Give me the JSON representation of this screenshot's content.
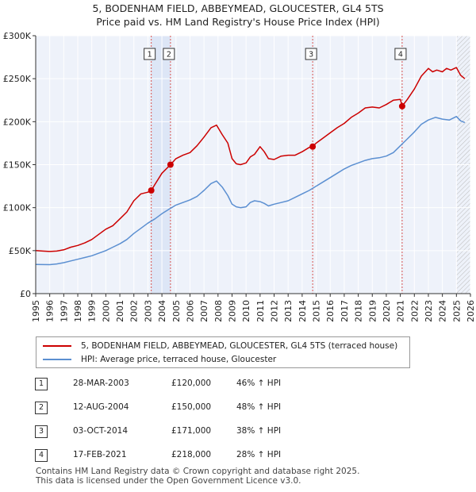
{
  "chart_data": {
    "type": "line",
    "title": "5, BODENHAM FIELD, ABBEYMEAD, GLOUCESTER, GL4 5TS",
    "subtitle": "Price paid vs. HM Land Registry's House Price Index (HPI)",
    "xlim": [
      1995,
      2026
    ],
    "ylim": [
      0,
      300000
    ],
    "x_ticks": [
      "1995",
      "1996",
      "1997",
      "1998",
      "1999",
      "2000",
      "2001",
      "2002",
      "2003",
      "2004",
      "2005",
      "2006",
      "2007",
      "2008",
      "2009",
      "2010",
      "2011",
      "2012",
      "2013",
      "2014",
      "2015",
      "2016",
      "2017",
      "2018",
      "2019",
      "2020",
      "2021",
      "2022",
      "2023",
      "2024",
      "2025",
      "2026"
    ],
    "y_ticks": [
      {
        "value": 0,
        "label": "£0"
      },
      {
        "value": 50000,
        "label": "£50K"
      },
      {
        "value": 100000,
        "label": "£100K"
      },
      {
        "value": 150000,
        "label": "£150K"
      },
      {
        "value": 200000,
        "label": "£200K"
      },
      {
        "value": 250000,
        "label": "£250K"
      },
      {
        "value": 300000,
        "label": "£300K"
      }
    ],
    "series": [
      {
        "name": "5, BODENHAM FIELD, ABBEYMEAD, GLOUCESTER, GL4 5TS (terraced house)",
        "color": "#cc0000",
        "x": [
          1995,
          1995.5,
          1996,
          1996.5,
          1997,
          1997.5,
          1998,
          1998.5,
          1999,
          1999.5,
          2000,
          2000.5,
          2001,
          2001.5,
          2002,
          2002.5,
          2003,
          2003.24,
          2003.5,
          2004,
          2004.61,
          2005,
          2005.5,
          2006,
          2006.5,
          2007,
          2007.5,
          2007.9,
          2008.3,
          2008.7,
          2009,
          2009.3,
          2009.6,
          2010,
          2010.3,
          2010.6,
          2011,
          2011.3,
          2011.6,
          2012,
          2012.5,
          2013,
          2013.5,
          2014,
          2014.5,
          2014.75,
          2015,
          2015.5,
          2016,
          2016.5,
          2017,
          2017.5,
          2018,
          2018.5,
          2019,
          2019.5,
          2020,
          2020.5,
          2021,
          2021.13,
          2021.5,
          2022,
          2022.5,
          2023,
          2023.3,
          2023.6,
          2024,
          2024.3,
          2024.6,
          2025,
          2025.3,
          2025.6
        ],
        "y": [
          50000,
          49500,
          49000,
          49500,
          51000,
          54000,
          56000,
          59000,
          63000,
          69000,
          75000,
          79000,
          87000,
          95000,
          108000,
          116000,
          118000,
          120000,
          127000,
          140000,
          150000,
          157000,
          161000,
          164000,
          172000,
          182000,
          193000,
          196000,
          185000,
          175000,
          157000,
          151000,
          150000,
          152000,
          159000,
          162000,
          171000,
          165000,
          157000,
          156000,
          160000,
          161000,
          161000,
          165000,
          170000,
          171000,
          175000,
          181000,
          187000,
          193000,
          198000,
          205000,
          210000,
          216000,
          217000,
          216000,
          220000,
          225000,
          226000,
          218000,
          226000,
          238000,
          253000,
          262000,
          258000,
          260000,
          258000,
          262000,
          260000,
          263000,
          254000,
          250000
        ]
      },
      {
        "name": "HPI: Average price, terraced house, Gloucester",
        "color": "#5b8fd1",
        "x": [
          1995,
          1995.5,
          1996,
          1996.5,
          1997,
          1997.5,
          1998,
          1998.5,
          1999,
          1999.5,
          2000,
          2000.5,
          2001,
          2001.5,
          2002,
          2002.5,
          2003,
          2003.5,
          2004,
          2004.5,
          2005,
          2005.5,
          2006,
          2006.5,
          2007,
          2007.5,
          2007.9,
          2008.3,
          2008.7,
          2009,
          2009.3,
          2009.6,
          2010,
          2010.3,
          2010.6,
          2011,
          2011.3,
          2011.6,
          2012,
          2012.5,
          2013,
          2013.5,
          2014,
          2014.5,
          2015,
          2015.5,
          2016,
          2016.5,
          2017,
          2017.5,
          2018,
          2018.5,
          2019,
          2019.5,
          2020,
          2020.5,
          2021,
          2021.5,
          2022,
          2022.5,
          2023,
          2023.5,
          2024,
          2024.5,
          2025,
          2025.3,
          2025.6
        ],
        "y": [
          34000,
          33800,
          33700,
          34500,
          36000,
          38000,
          40000,
          42000,
          44000,
          47000,
          50000,
          54000,
          58000,
          63000,
          70000,
          76000,
          82000,
          87000,
          93000,
          98000,
          103000,
          106000,
          109000,
          113000,
          120000,
          128000,
          131000,
          124000,
          114000,
          104000,
          101000,
          100000,
          101000,
          106000,
          108000,
          107000,
          105000,
          102000,
          104000,
          106000,
          108000,
          112000,
          116000,
          120000,
          125000,
          130000,
          135000,
          140000,
          145000,
          149000,
          152000,
          155000,
          157000,
          158000,
          160000,
          164000,
          172000,
          180000,
          188000,
          197000,
          202000,
          205000,
          203000,
          202000,
          206000,
          201000,
          199000
        ]
      }
    ],
    "sales": [
      {
        "id": "1",
        "x": 2003.24,
        "price": 120000
      },
      {
        "id": "2",
        "x": 2004.61,
        "price": 150000
      },
      {
        "id": "3",
        "x": 2014.75,
        "price": 171000
      },
      {
        "id": "4",
        "x": 2021.13,
        "price": 218000
      }
    ],
    "shaded_ranges": [
      [
        2003.24,
        2004.61
      ]
    ],
    "hatched_from": 2025.0
  },
  "legend": {
    "property_label": "5, BODENHAM FIELD, ABBEYMEAD, GLOUCESTER, GL4 5TS (terraced house)",
    "hpi_label": "HPI: Average price, terraced house, Gloucester",
    "property_color": "#cc0000",
    "hpi_color": "#5b8fd1"
  },
  "sales_table": [
    {
      "num": "1",
      "date": "28-MAR-2003",
      "price": "£120,000",
      "hpi": "46% ↑ HPI"
    },
    {
      "num": "2",
      "date": "12-AUG-2004",
      "price": "£150,000",
      "hpi": "48% ↑ HPI"
    },
    {
      "num": "3",
      "date": "03-OCT-2014",
      "price": "£171,000",
      "hpi": "38% ↑ HPI"
    },
    {
      "num": "4",
      "date": "17-FEB-2021",
      "price": "£218,000",
      "hpi": "28% ↑ HPI"
    }
  ],
  "footer": {
    "line1": "Contains HM Land Registry data © Crown copyright and database right 2025.",
    "line2": "This data is licensed under the Open Government Licence v3.0."
  }
}
